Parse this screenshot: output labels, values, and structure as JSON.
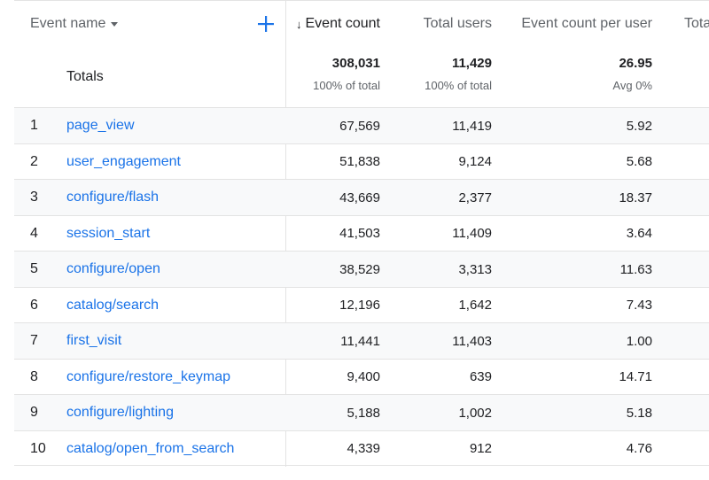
{
  "header": {
    "event_name": "Event name",
    "event_count": "Event count",
    "total_users": "Total users",
    "event_count_per_user": "Event count per user",
    "total_truncated": "Tota"
  },
  "totals": {
    "label": "Totals",
    "event_count": "308,031",
    "event_count_sub": "100% of total",
    "total_users": "11,429",
    "total_users_sub": "100% of total",
    "ecpu": "26.95",
    "ecpu_sub": "Avg 0%"
  },
  "rows": [
    {
      "index": "1",
      "name": "page_view",
      "event_count": "67,569",
      "total_users": "11,419",
      "ecpu": "5.92"
    },
    {
      "index": "2",
      "name": "user_engagement",
      "event_count": "51,838",
      "total_users": "9,124",
      "ecpu": "5.68"
    },
    {
      "index": "3",
      "name": "configure/flash",
      "event_count": "43,669",
      "total_users": "2,377",
      "ecpu": "18.37"
    },
    {
      "index": "4",
      "name": "session_start",
      "event_count": "41,503",
      "total_users": "11,409",
      "ecpu": "3.64"
    },
    {
      "index": "5",
      "name": "configure/open",
      "event_count": "38,529",
      "total_users": "3,313",
      "ecpu": "11.63"
    },
    {
      "index": "6",
      "name": "catalog/search",
      "event_count": "12,196",
      "total_users": "1,642",
      "ecpu": "7.43"
    },
    {
      "index": "7",
      "name": "first_visit",
      "event_count": "11,441",
      "total_users": "11,403",
      "ecpu": "1.00"
    },
    {
      "index": "8",
      "name": "configure/restore_keymap",
      "event_count": "9,400",
      "total_users": "639",
      "ecpu": "14.71"
    },
    {
      "index": "9",
      "name": "configure/lighting",
      "event_count": "5,188",
      "total_users": "1,002",
      "ecpu": "5.18"
    },
    {
      "index": "10",
      "name": "catalog/open_from_search",
      "event_count": "4,339",
      "total_users": "912",
      "ecpu": "4.76"
    }
  ],
  "colors": {
    "link": "#1a73e8",
    "row_shade": "#f8f9fa",
    "divider": "#e3e3e3"
  },
  "icons": {
    "add_dimension": "plus-icon",
    "sort": "arrow-down-icon",
    "dropdown": "caret-down-icon"
  }
}
